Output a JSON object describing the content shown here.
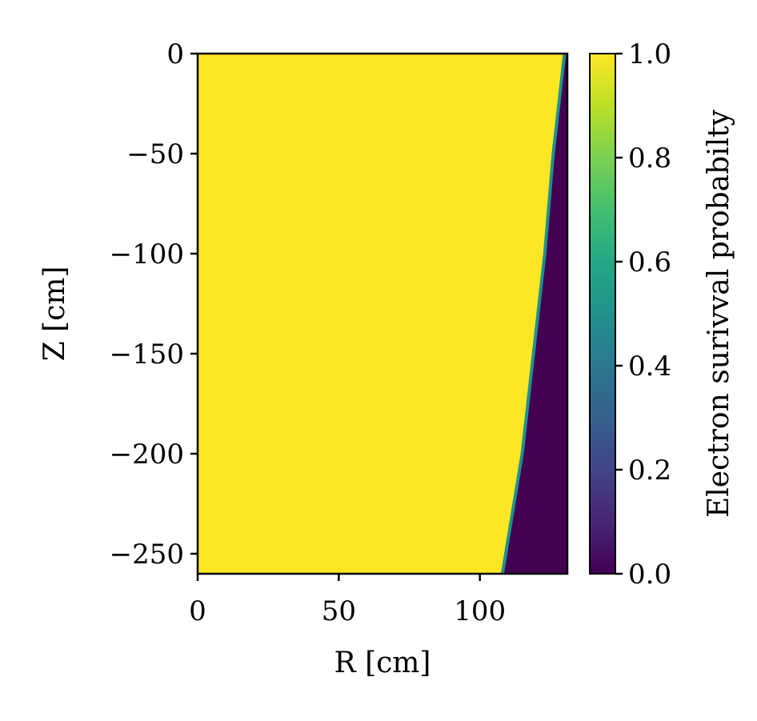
{
  "chart_data": {
    "type": "heatmap",
    "xlabel": "R [cm]",
    "ylabel": "Z [cm]",
    "xlim": [
      0,
      131
    ],
    "ylim": [
      -260,
      0
    ],
    "xticks": [
      0,
      50,
      100
    ],
    "yticks": [
      0,
      -50,
      -100,
      -150,
      -200,
      -250
    ],
    "colorbar": {
      "label": "Electron surivval probabilty",
      "range": [
        0.0,
        1.0
      ],
      "ticks": [
        "1.0",
        "0.8",
        "0.6",
        "0.4",
        "0.2",
        "0.0"
      ],
      "colormap": "viridis"
    },
    "values_description_points": {
      "boundary_r_at_z": [
        {
          "z": 0,
          "r": 130
        },
        {
          "z": -50,
          "r": 126
        },
        {
          "z": -100,
          "r": 123
        },
        {
          "z": -150,
          "r": 119
        },
        {
          "z": -200,
          "r": 115
        },
        {
          "z": -260,
          "r": 108
        }
      ],
      "inside_value": 1.0,
      "outside_value": 0.0
    },
    "colors": {
      "high": "#fde725",
      "low": "#440154"
    }
  }
}
